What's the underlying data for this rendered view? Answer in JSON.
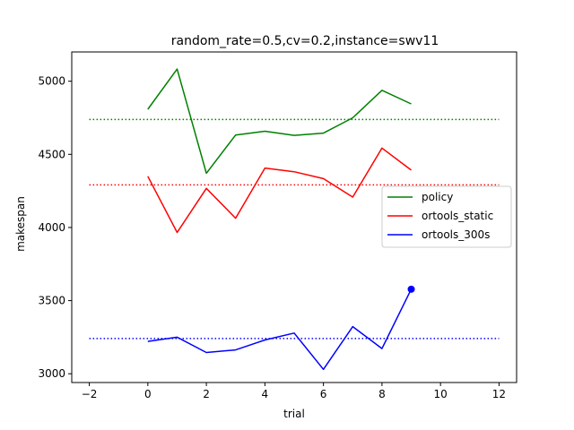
{
  "chart_data": {
    "type": "line",
    "title": "random_rate=0.5,cv=0.2,instance=swv11",
    "xlabel": "trial",
    "ylabel": "makespan",
    "xlim": [
      -2.6,
      12.6
    ],
    "ylim": [
      2940,
      5200
    ],
    "xticks": [
      -2,
      0,
      2,
      4,
      6,
      8,
      10,
      12
    ],
    "xtick_labels": [
      "−2",
      "0",
      "2",
      "4",
      "6",
      "8",
      "10",
      "12"
    ],
    "yticks": [
      3000,
      3500,
      4000,
      4500,
      5000
    ],
    "ytick_labels": [
      "3000",
      "3500",
      "4000",
      "4500",
      "5000"
    ],
    "grid": false,
    "legend_position": "center-right",
    "x": [
      0,
      1,
      2,
      3,
      4,
      5,
      6,
      7,
      8,
      9
    ],
    "series": [
      {
        "name": "policy",
        "color": "#008000",
        "values": [
          4808,
          5083,
          4371,
          4632,
          4658,
          4630,
          4645,
          4750,
          4938,
          4845
        ]
      },
      {
        "name": "ortools_static",
        "color": "#ff0000",
        "values": [
          4350,
          3966,
          4267,
          4063,
          4406,
          4381,
          4334,
          4208,
          4543,
          4392
        ]
      },
      {
        "name": "ortools_300s",
        "color": "#0000ff",
        "values": [
          3221,
          3250,
          3145,
          3163,
          3231,
          3278,
          3030,
          3322,
          3172,
          3578
        ]
      }
    ],
    "reference_lines": [
      {
        "color": "#008000",
        "style": "dotted",
        "y": 4738,
        "x_range": [
          -2,
          12
        ]
      },
      {
        "color": "#ff0000",
        "style": "dotted",
        "y": 4291,
        "x_range": [
          -2,
          12
        ]
      },
      {
        "color": "#0000ff",
        "style": "dotted",
        "y": 3241,
        "x_range": [
          -2,
          12
        ]
      }
    ],
    "markers": [
      {
        "series": "ortools_300s",
        "x": 9,
        "y": 3578,
        "color": "#0000ff",
        "shape": "circle"
      }
    ]
  }
}
